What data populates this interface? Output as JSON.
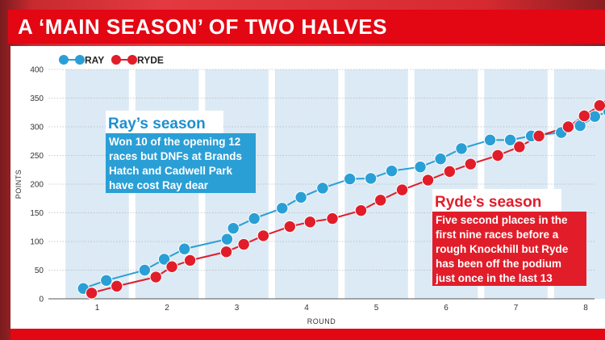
{
  "title": "A ‘MAIN SEASON’ OF TWO HALVES",
  "colors": {
    "ray": "#2a9fd6",
    "ryde": "#e11d2a",
    "band": "#dceaf5",
    "accent": "#e30613",
    "ray_head": "#1f8fd0",
    "ryde_head": "#e11d2a"
  },
  "chart_data": {
    "type": "line",
    "xlabel": "ROUND",
    "ylabel": "POINTS",
    "ylim": [
      0,
      400
    ],
    "yticks": [
      0,
      50,
      100,
      150,
      200,
      250,
      300,
      350,
      400
    ],
    "xticks": [
      "1",
      "2",
      "3",
      "4",
      "5",
      "6",
      "7",
      "8"
    ],
    "grid": true,
    "legend_position": "top-left",
    "series": [
      {
        "name": "RAY",
        "color": "#2a9fd6",
        "x": [
          0.8,
          1.13,
          1.68,
          1.96,
          2.25,
          2.86,
          2.95,
          3.25,
          3.65,
          3.92,
          4.23,
          4.62,
          4.92,
          5.22,
          5.63,
          5.92,
          6.22,
          6.63,
          6.92,
          7.22,
          7.65,
          7.92,
          8.13,
          8.33
        ],
        "values": [
          18,
          32,
          50,
          69,
          87,
          104,
          123,
          140,
          158,
          177,
          193,
          209,
          210,
          223,
          230,
          244,
          262,
          277,
          277,
          284,
          290,
          302,
          318,
          327
        ]
      },
      {
        "name": "RYDE",
        "color": "#e11d2a",
        "x": [
          0.92,
          1.28,
          1.84,
          2.07,
          2.33,
          2.85,
          3.1,
          3.38,
          3.76,
          4.05,
          4.37,
          4.78,
          5.06,
          5.37,
          5.74,
          6.05,
          6.35,
          6.74,
          7.05,
          7.33,
          7.75,
          7.98,
          8.2,
          8.4
        ],
        "values": [
          10,
          22,
          38,
          56,
          67,
          82,
          95,
          110,
          126,
          134,
          140,
          154,
          172,
          190,
          207,
          222,
          235,
          250,
          265,
          284,
          300,
          319,
          337,
          355
        ]
      }
    ]
  },
  "annotations": {
    "ray": {
      "heading": "Ray’s season",
      "lines": [
        "Won 10 of the opening 12",
        "races but DNFs at Brands",
        "Hatch and Cadwell Park",
        "have cost Ray dear"
      ]
    },
    "ryde": {
      "heading": "Ryde’s season",
      "lines": [
        "Five second places in the",
        "first nine races before a",
        "rough Knockhill but Ryde",
        "has been off the podium",
        "just once in the last 13"
      ]
    }
  }
}
